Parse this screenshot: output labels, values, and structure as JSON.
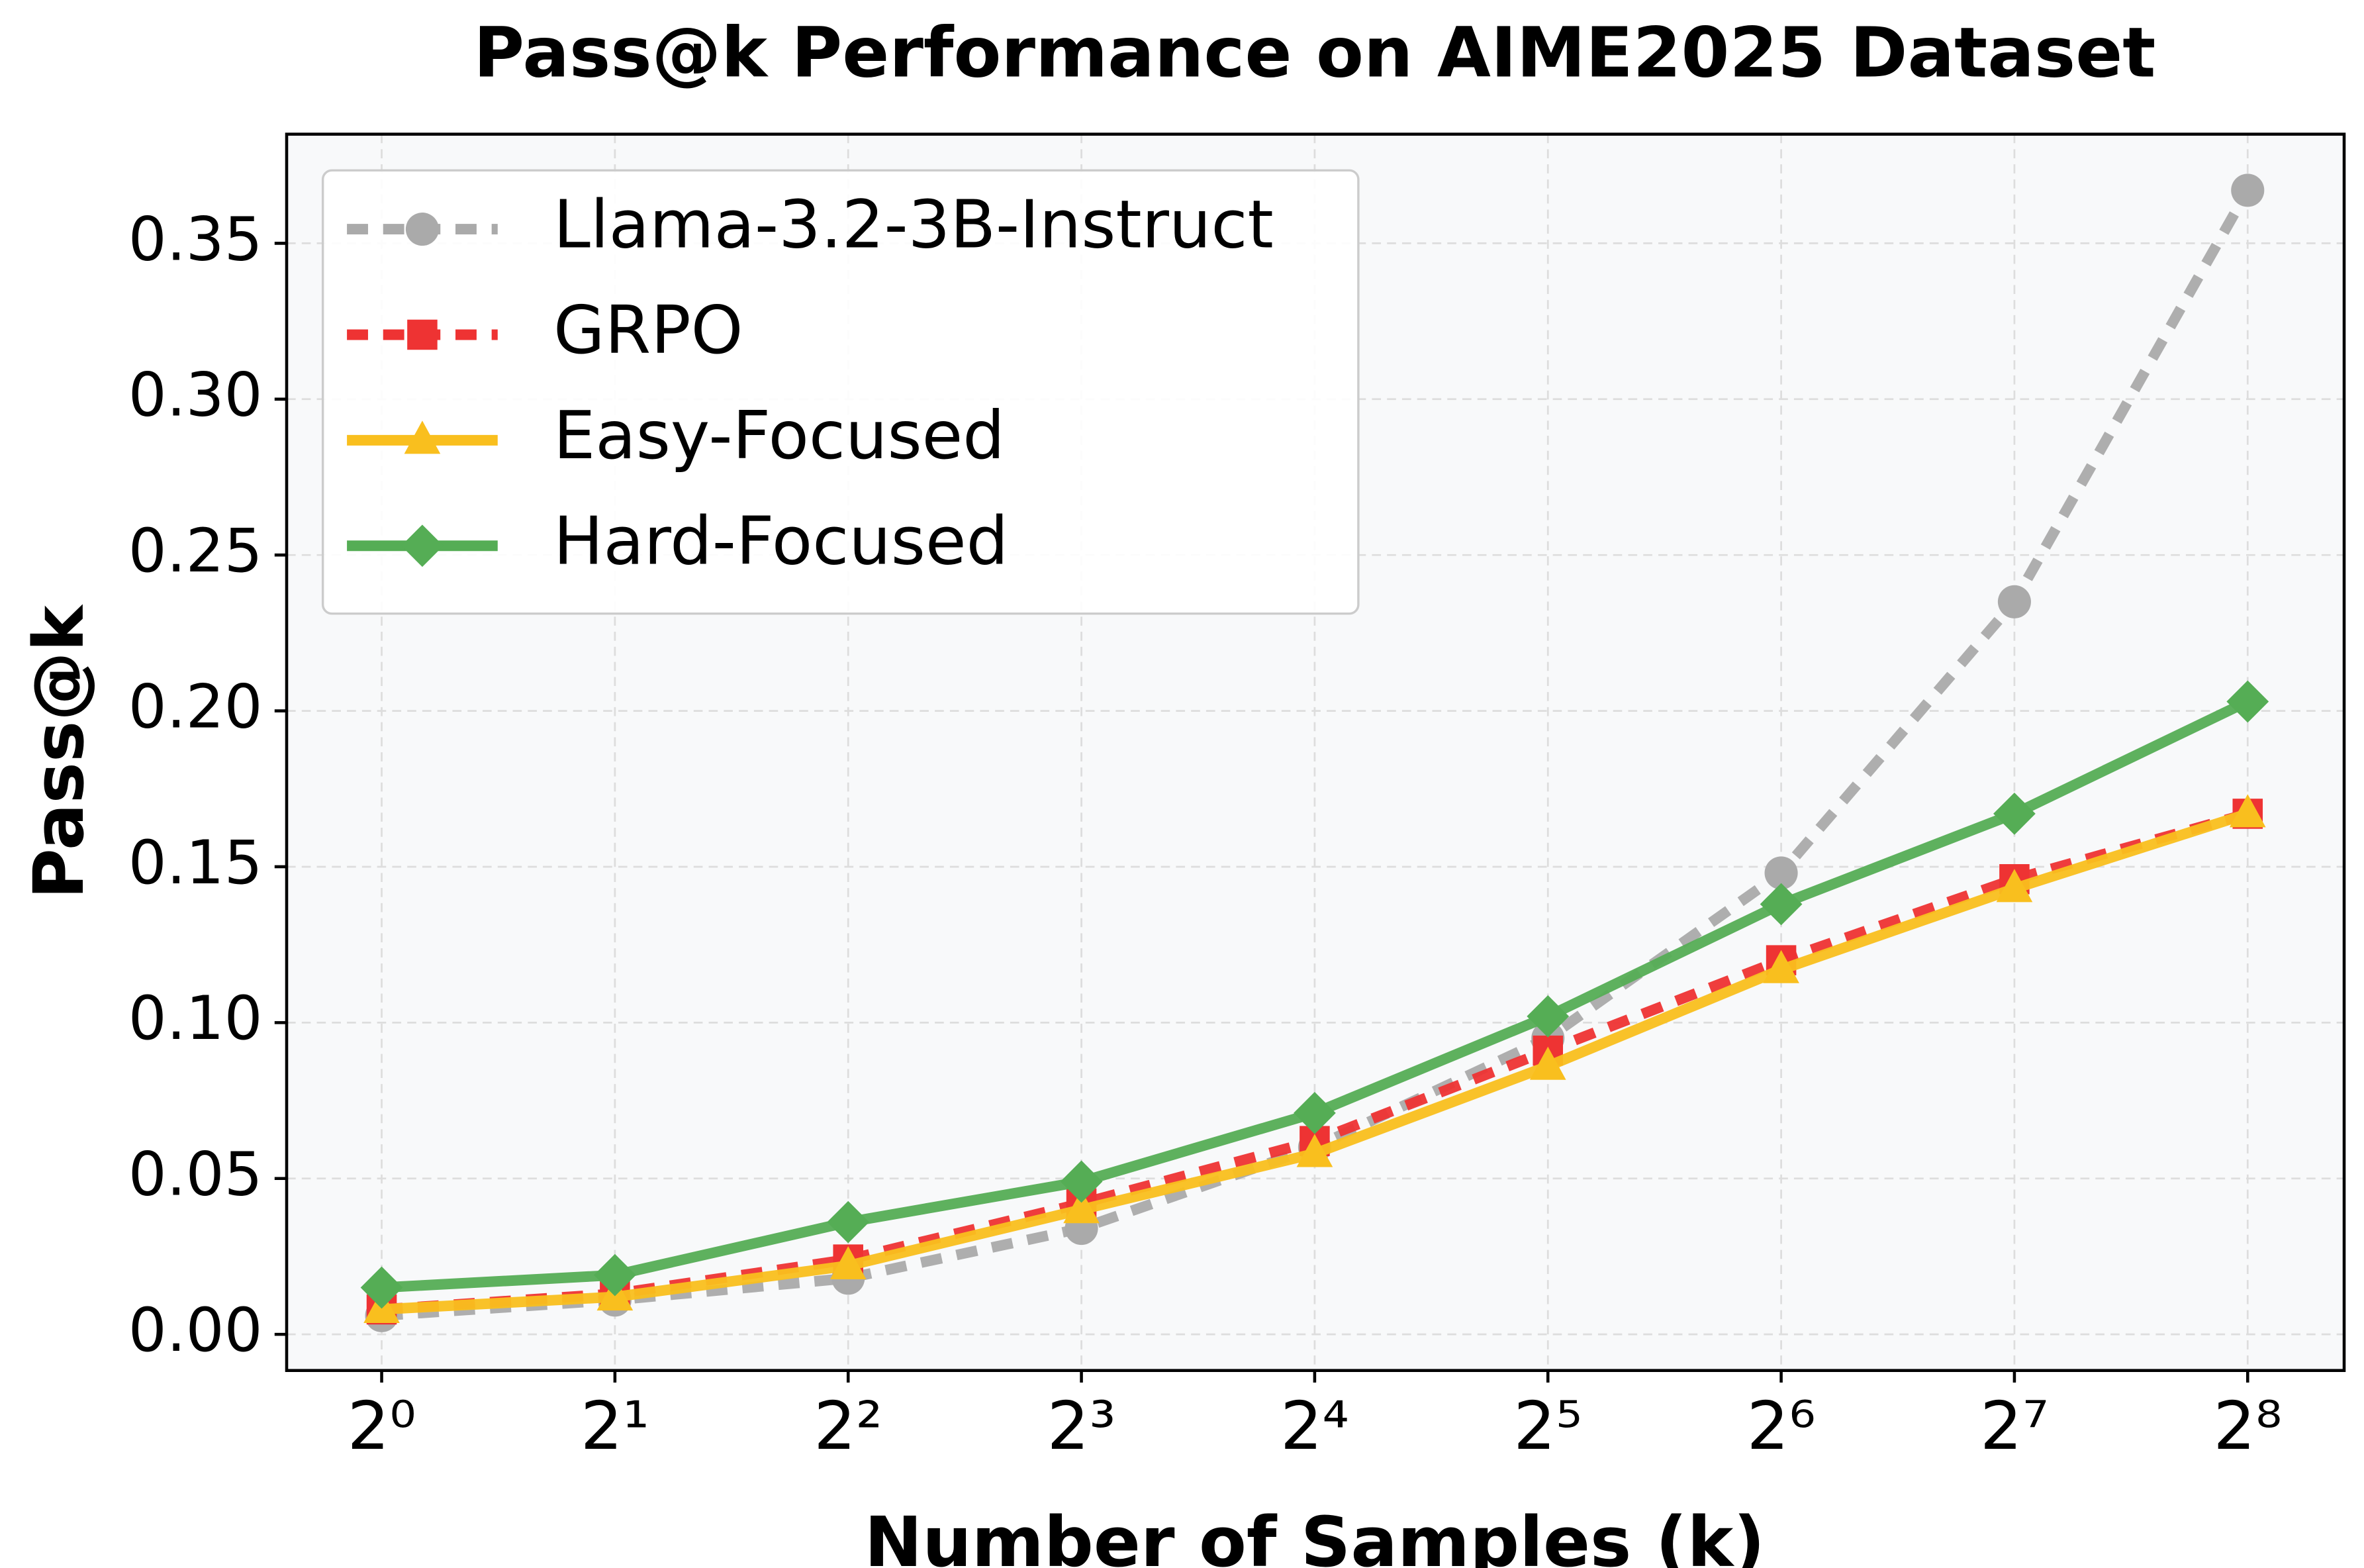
{
  "chart_data": {
    "type": "line",
    "title": "Pass@k Performance on AIME2025 Dataset",
    "x_label": "Number of Samples (k)",
    "y_label": "Pass@k",
    "x": [
      1,
      2,
      4,
      8,
      16,
      32,
      64,
      128,
      256
    ],
    "x_scale": "log2",
    "xlim": [
      0.754,
      341
    ],
    "xticks": [
      {
        "value": 1,
        "label": "2⁰"
      },
      {
        "value": 2,
        "label": "2¹"
      },
      {
        "value": 4,
        "label": "2²"
      },
      {
        "value": 8,
        "label": "2³"
      },
      {
        "value": 16,
        "label": "2⁴"
      },
      {
        "value": 32,
        "label": "2⁵"
      },
      {
        "value": 64,
        "label": "2⁶"
      },
      {
        "value": 128,
        "label": "2⁷"
      },
      {
        "value": 256,
        "label": "2⁸"
      }
    ],
    "ylim": [
      -0.0116,
      0.385
    ],
    "yticks": [
      {
        "value": 0,
        "label": "0.00"
      },
      {
        "value": 0.05,
        "label": "0.05"
      },
      {
        "value": 0.1,
        "label": "0.10"
      },
      {
        "value": 0.15,
        "label": "0.15"
      },
      {
        "value": 0.2,
        "label": "0.20"
      },
      {
        "value": 0.25,
        "label": "0.25"
      },
      {
        "value": 0.3,
        "label": "0.30"
      },
      {
        "value": 0.35,
        "label": "0.35"
      }
    ],
    "grid": true,
    "legend": "upper left",
    "series": [
      {
        "name": "Llama-3.2-3B-Instruct",
        "color": "#aaaaaa",
        "linestyle": "dashed",
        "marker": "circle",
        "values": [
          0.006,
          0.011,
          0.018,
          0.034,
          0.06,
          0.095,
          0.148,
          0.235,
          0.367
        ]
      },
      {
        "name": "GRPO",
        "color": "#ee3333",
        "linestyle": "dashed",
        "marker": "square",
        "values": [
          0.008,
          0.013,
          0.024,
          0.042,
          0.062,
          0.091,
          0.12,
          0.146,
          0.167
        ]
      },
      {
        "name": "Easy-Focused",
        "color": "#f9bf1e",
        "linestyle": "solid",
        "marker": "triangle",
        "values": [
          0.008,
          0.012,
          0.022,
          0.04,
          0.058,
          0.086,
          0.117,
          0.143,
          0.167
        ]
      },
      {
        "name": "Hard-Focused",
        "color": "#55ad55",
        "linestyle": "solid",
        "marker": "diamond",
        "values": [
          0.015,
          0.019,
          0.036,
          0.049,
          0.071,
          0.102,
          0.138,
          0.167,
          0.203
        ]
      }
    ]
  }
}
